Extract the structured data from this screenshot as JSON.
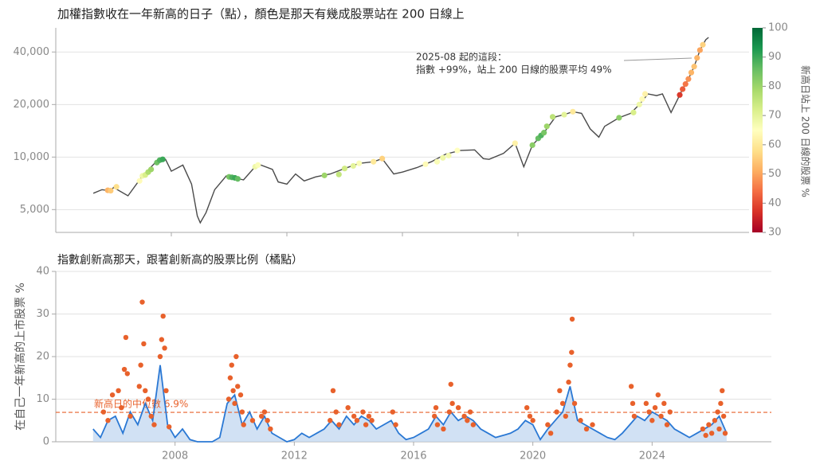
{
  "chart_data": [
    {
      "type": "line",
      "title": "加權指數收在一年新高的日子（點），顏色是那天有幾成股票站在 200 日線上",
      "log_y": true,
      "color": "#4a4a4a",
      "x": [
        2005.3,
        2005.6,
        2005.9,
        2006.0,
        2006.5,
        2007.0,
        2007.5,
        2007.8,
        2008.0,
        2008.4,
        2008.7,
        2008.9,
        2009.0,
        2009.2,
        2009.5,
        2009.9,
        2010.2,
        2010.5,
        2010.9,
        2011.1,
        2011.5,
        2011.7,
        2012.0,
        2012.3,
        2012.6,
        2013.0,
        2013.5,
        2014.0,
        2014.5,
        2015.0,
        2015.3,
        2015.7,
        2016.0,
        2016.5,
        2017.0,
        2017.5,
        2018.0,
        2018.5,
        2018.8,
        2019.0,
        2019.5,
        2019.9,
        2020.2,
        2020.5,
        2020.9,
        2021.3,
        2021.6,
        2021.9,
        2022.2,
        2022.5,
        2022.8,
        2023.0,
        2023.5,
        2023.9,
        2024.2,
        2024.5,
        2024.8,
        2025.0,
        2025.3,
        2025.5,
        2025.7,
        2025.9,
        2026.1,
        2026.3,
        2026.5,
        2026.6
      ],
      "values": [
        6200,
        6500,
        6400,
        6700,
        6000,
        7800,
        9500,
        9700,
        8300,
        9000,
        7000,
        4600,
        4200,
        4800,
        6500,
        7800,
        7600,
        7400,
        8800,
        9000,
        8500,
        7200,
        7000,
        8000,
        7300,
        7700,
        8000,
        8600,
        9200,
        9400,
        9800,
        8000,
        8200,
        8700,
        9400,
        10400,
        10900,
        11000,
        9800,
        9700,
        10500,
        12000,
        8800,
        11700,
        13800,
        17000,
        17500,
        18200,
        17800,
        14500,
        13000,
        15000,
        16800,
        17800,
        20000,
        23000,
        22500,
        23000,
        18000,
        21000,
        24500,
        28000,
        33000,
        41000,
        47000,
        48500
      ],
      "highlights": {
        "x": [
          2005.8,
          2005.9,
          2006.1,
          2006.9,
          2007.0,
          2007.1,
          2007.2,
          2007.3,
          2007.5,
          2007.6,
          2007.7,
          2010.0,
          2010.1,
          2010.2,
          2010.3,
          2010.9,
          2011.0,
          2013.3,
          2013.8,
          2014.0,
          2014.3,
          2014.5,
          2015.0,
          2015.3,
          2016.8,
          2017.2,
          2017.4,
          2017.6,
          2017.9,
          2019.9,
          2020.5,
          2020.7,
          2020.8,
          2020.9,
          2021.0,
          2021.2,
          2021.6,
          2021.9,
          2023.5,
          2024.0,
          2024.2,
          2024.3,
          2024.4,
          2025.6,
          2025.7,
          2025.8,
          2025.9,
          2026.0,
          2026.1,
          2026.2,
          2026.3,
          2026.4
        ],
        "values": [
          6450,
          6420,
          6750,
          7300,
          7800,
          7900,
          8200,
          8500,
          9300,
          9600,
          9700,
          7700,
          7650,
          7600,
          7500,
          8800,
          9000,
          7850,
          7950,
          8600,
          8900,
          9200,
          9400,
          9800,
          9100,
          9400,
          9900,
          10200,
          10900,
          12000,
          11700,
          12800,
          13300,
          13800,
          15000,
          17000,
          17500,
          18200,
          16800,
          18000,
          20000,
          21500,
          23000,
          22700,
          24500,
          26200,
          28000,
          30500,
          33000,
          37000,
          41000,
          44000
        ],
        "pct": [
          52,
          55,
          58,
          64,
          68,
          72,
          78,
          80,
          85,
          88,
          90,
          84,
          88,
          90,
          86,
          68,
          66,
          80,
          75,
          73,
          70,
          66,
          60,
          56,
          64,
          66,
          68,
          67,
          65,
          62,
          82,
          86,
          88,
          84,
          80,
          76,
          70,
          60,
          82,
          72,
          68,
          64,
          62,
          38,
          42,
          45,
          48,
          52,
          54,
          52,
          50,
          56
        ]
      },
      "annotation": [
        "2025-08 起的這段：",
        "指數 +99%，站上 200 日線的股票平均 49%"
      ],
      "xlim": [
        2004,
        2028
      ],
      "xticks": [
        2008,
        2012,
        2016,
        2020,
        2024
      ],
      "ylim": [
        3700,
        55000
      ],
      "yticks": [
        {
          "value": 5000,
          "label": "5,000"
        },
        {
          "value": 10000,
          "label": "10,000"
        },
        {
          "value": 20000,
          "label": "20,000"
        },
        {
          "value": 40000,
          "label": "40,000"
        }
      ],
      "grid": true,
      "colorbar": {
        "label": "新高日站上 200 日線的股票 %",
        "lim": [
          30,
          100
        ],
        "ticks": [
          30,
          40,
          50,
          60,
          70,
          80,
          90,
          100
        ],
        "colormap": [
          "#a50026",
          "#d73027",
          "#f46d43",
          "#fdae61",
          "#fee08b",
          "#ffffbf",
          "#d9ef8b",
          "#a6d96a",
          "#66bd63",
          "#1a9850",
          "#006837"
        ]
      }
    },
    {
      "type": "line",
      "title": "指數創新高那天，跟著創新高的股票比例（橘點）",
      "ylabel": "在自己一年新高的上市股票 %",
      "color": "#2a78d4",
      "fill": "#c6d9f1",
      "x": [
        2005.25,
        2005.5,
        2005.75,
        2006.0,
        2006.25,
        2006.5,
        2006.75,
        2007.0,
        2007.25,
        2007.5,
        2007.75,
        2008.0,
        2008.25,
        2008.5,
        2008.75,
        2009.0,
        2009.25,
        2009.5,
        2009.75,
        2010.0,
        2010.25,
        2010.5,
        2010.75,
        2011.0,
        2011.25,
        2011.5,
        2011.75,
        2012.0,
        2012.25,
        2012.5,
        2012.75,
        2013.0,
        2013.25,
        2013.5,
        2013.75,
        2014.0,
        2014.25,
        2014.5,
        2014.75,
        2015.0,
        2015.25,
        2015.5,
        2015.75,
        2016.0,
        2016.25,
        2016.5,
        2016.75,
        2017.0,
        2017.25,
        2017.5,
        2017.75,
        2018.0,
        2018.25,
        2018.5,
        2018.75,
        2019.0,
        2019.25,
        2019.5,
        2019.75,
        2020.0,
        2020.25,
        2020.5,
        2020.75,
        2021.0,
        2021.25,
        2021.5,
        2021.75,
        2022.0,
        2022.25,
        2022.5,
        2022.75,
        2023.0,
        2023.25,
        2023.5,
        2023.75,
        2024.0,
        2024.25,
        2024.5,
        2024.75,
        2025.0,
        2025.25,
        2025.5,
        2025.75,
        2026.0,
        2026.25,
        2026.5
      ],
      "values": [
        3,
        1,
        5,
        6,
        2,
        7,
        4,
        9,
        5,
        18,
        4,
        1,
        3,
        0.5,
        0,
        0,
        0,
        1,
        9,
        11,
        4,
        7,
        3,
        6,
        2,
        1,
        0,
        0.5,
        2,
        1,
        2,
        3,
        5,
        3,
        6,
        4,
        6,
        5,
        3,
        4,
        5,
        2,
        0.5,
        1,
        2,
        3,
        6,
        4,
        7,
        5,
        6,
        5,
        3,
        2,
        1,
        1.5,
        2,
        3,
        5,
        4,
        0.5,
        3,
        5,
        7,
        13,
        5,
        4,
        3,
        2,
        1,
        0.5,
        2,
        4,
        6,
        5,
        7,
        6,
        5,
        3,
        2,
        1,
        2,
        3,
        4,
        6,
        2
      ],
      "scatter": {
        "color": "#e8612b",
        "x": [
          2005.6,
          2005.75,
          2005.9,
          2006.1,
          2006.2,
          2006.3,
          2006.35,
          2006.4,
          2006.5,
          2006.8,
          2006.85,
          2006.9,
          2006.95,
          2007.0,
          2007.1,
          2007.2,
          2007.3,
          2007.5,
          2007.55,
          2007.6,
          2007.65,
          2007.7,
          2007.8,
          2009.8,
          2009.85,
          2009.9,
          2009.95,
          2010.0,
          2010.05,
          2010.1,
          2010.2,
          2010.25,
          2010.3,
          2010.6,
          2010.9,
          2011.0,
          2011.1,
          2011.2,
          2013.2,
          2013.3,
          2013.4,
          2013.5,
          2013.8,
          2014.0,
          2014.1,
          2014.3,
          2014.4,
          2014.5,
          2014.6,
          2015.3,
          2015.4,
          2016.7,
          2016.75,
          2016.8,
          2017.0,
          2017.2,
          2017.25,
          2017.3,
          2017.5,
          2017.7,
          2017.8,
          2017.9,
          2018.0,
          2019.8,
          2019.9,
          2020.0,
          2020.5,
          2020.6,
          2020.8,
          2020.9,
          2021.0,
          2021.1,
          2021.2,
          2021.25,
          2021.3,
          2021.32,
          2021.4,
          2021.6,
          2021.8,
          2022.0,
          2023.3,
          2023.35,
          2023.4,
          2023.8,
          2023.9,
          2024.0,
          2024.1,
          2024.2,
          2024.3,
          2024.4,
          2024.5,
          2024.6,
          2025.7,
          2025.8,
          2025.9,
          2026.0,
          2026.1,
          2026.2,
          2026.25,
          2026.3,
          2026.35,
          2026.4,
          2026.45
        ],
        "values": [
          7,
          5,
          11,
          12,
          8,
          17,
          24.5,
          16,
          6,
          13,
          18,
          32.8,
          23,
          12,
          10,
          6,
          4,
          20,
          24,
          29.5,
          22,
          12,
          3.5,
          10,
          15,
          18,
          12,
          9,
          20,
          13,
          11,
          7,
          4,
          5,
          6,
          7,
          5,
          3,
          5,
          12,
          7,
          4,
          8,
          6,
          5,
          7,
          4,
          6,
          5,
          7,
          4,
          6,
          8,
          4,
          3,
          7,
          13.5,
          9,
          8,
          6,
          5,
          7,
          4,
          8,
          6,
          5,
          4,
          2,
          7,
          12,
          9,
          6,
          14,
          18,
          21,
          28.8,
          9,
          5,
          3,
          4,
          13,
          9,
          6,
          9,
          7,
          5,
          8,
          11,
          6,
          9,
          4,
          7,
          3,
          1.5,
          4,
          2,
          5,
          7,
          3,
          9,
          12,
          6,
          2
        ]
      },
      "median": {
        "value": 6.9,
        "label": "新高日的中位數 6.9%",
        "color": "#e8612b"
      },
      "xlim": [
        2004,
        2028
      ],
      "xticks": [
        2008,
        2012,
        2016,
        2020,
        2024
      ],
      "ylim": [
        0,
        40
      ],
      "yticks": [
        0,
        10,
        20,
        30,
        40
      ],
      "grid": true
    }
  ]
}
